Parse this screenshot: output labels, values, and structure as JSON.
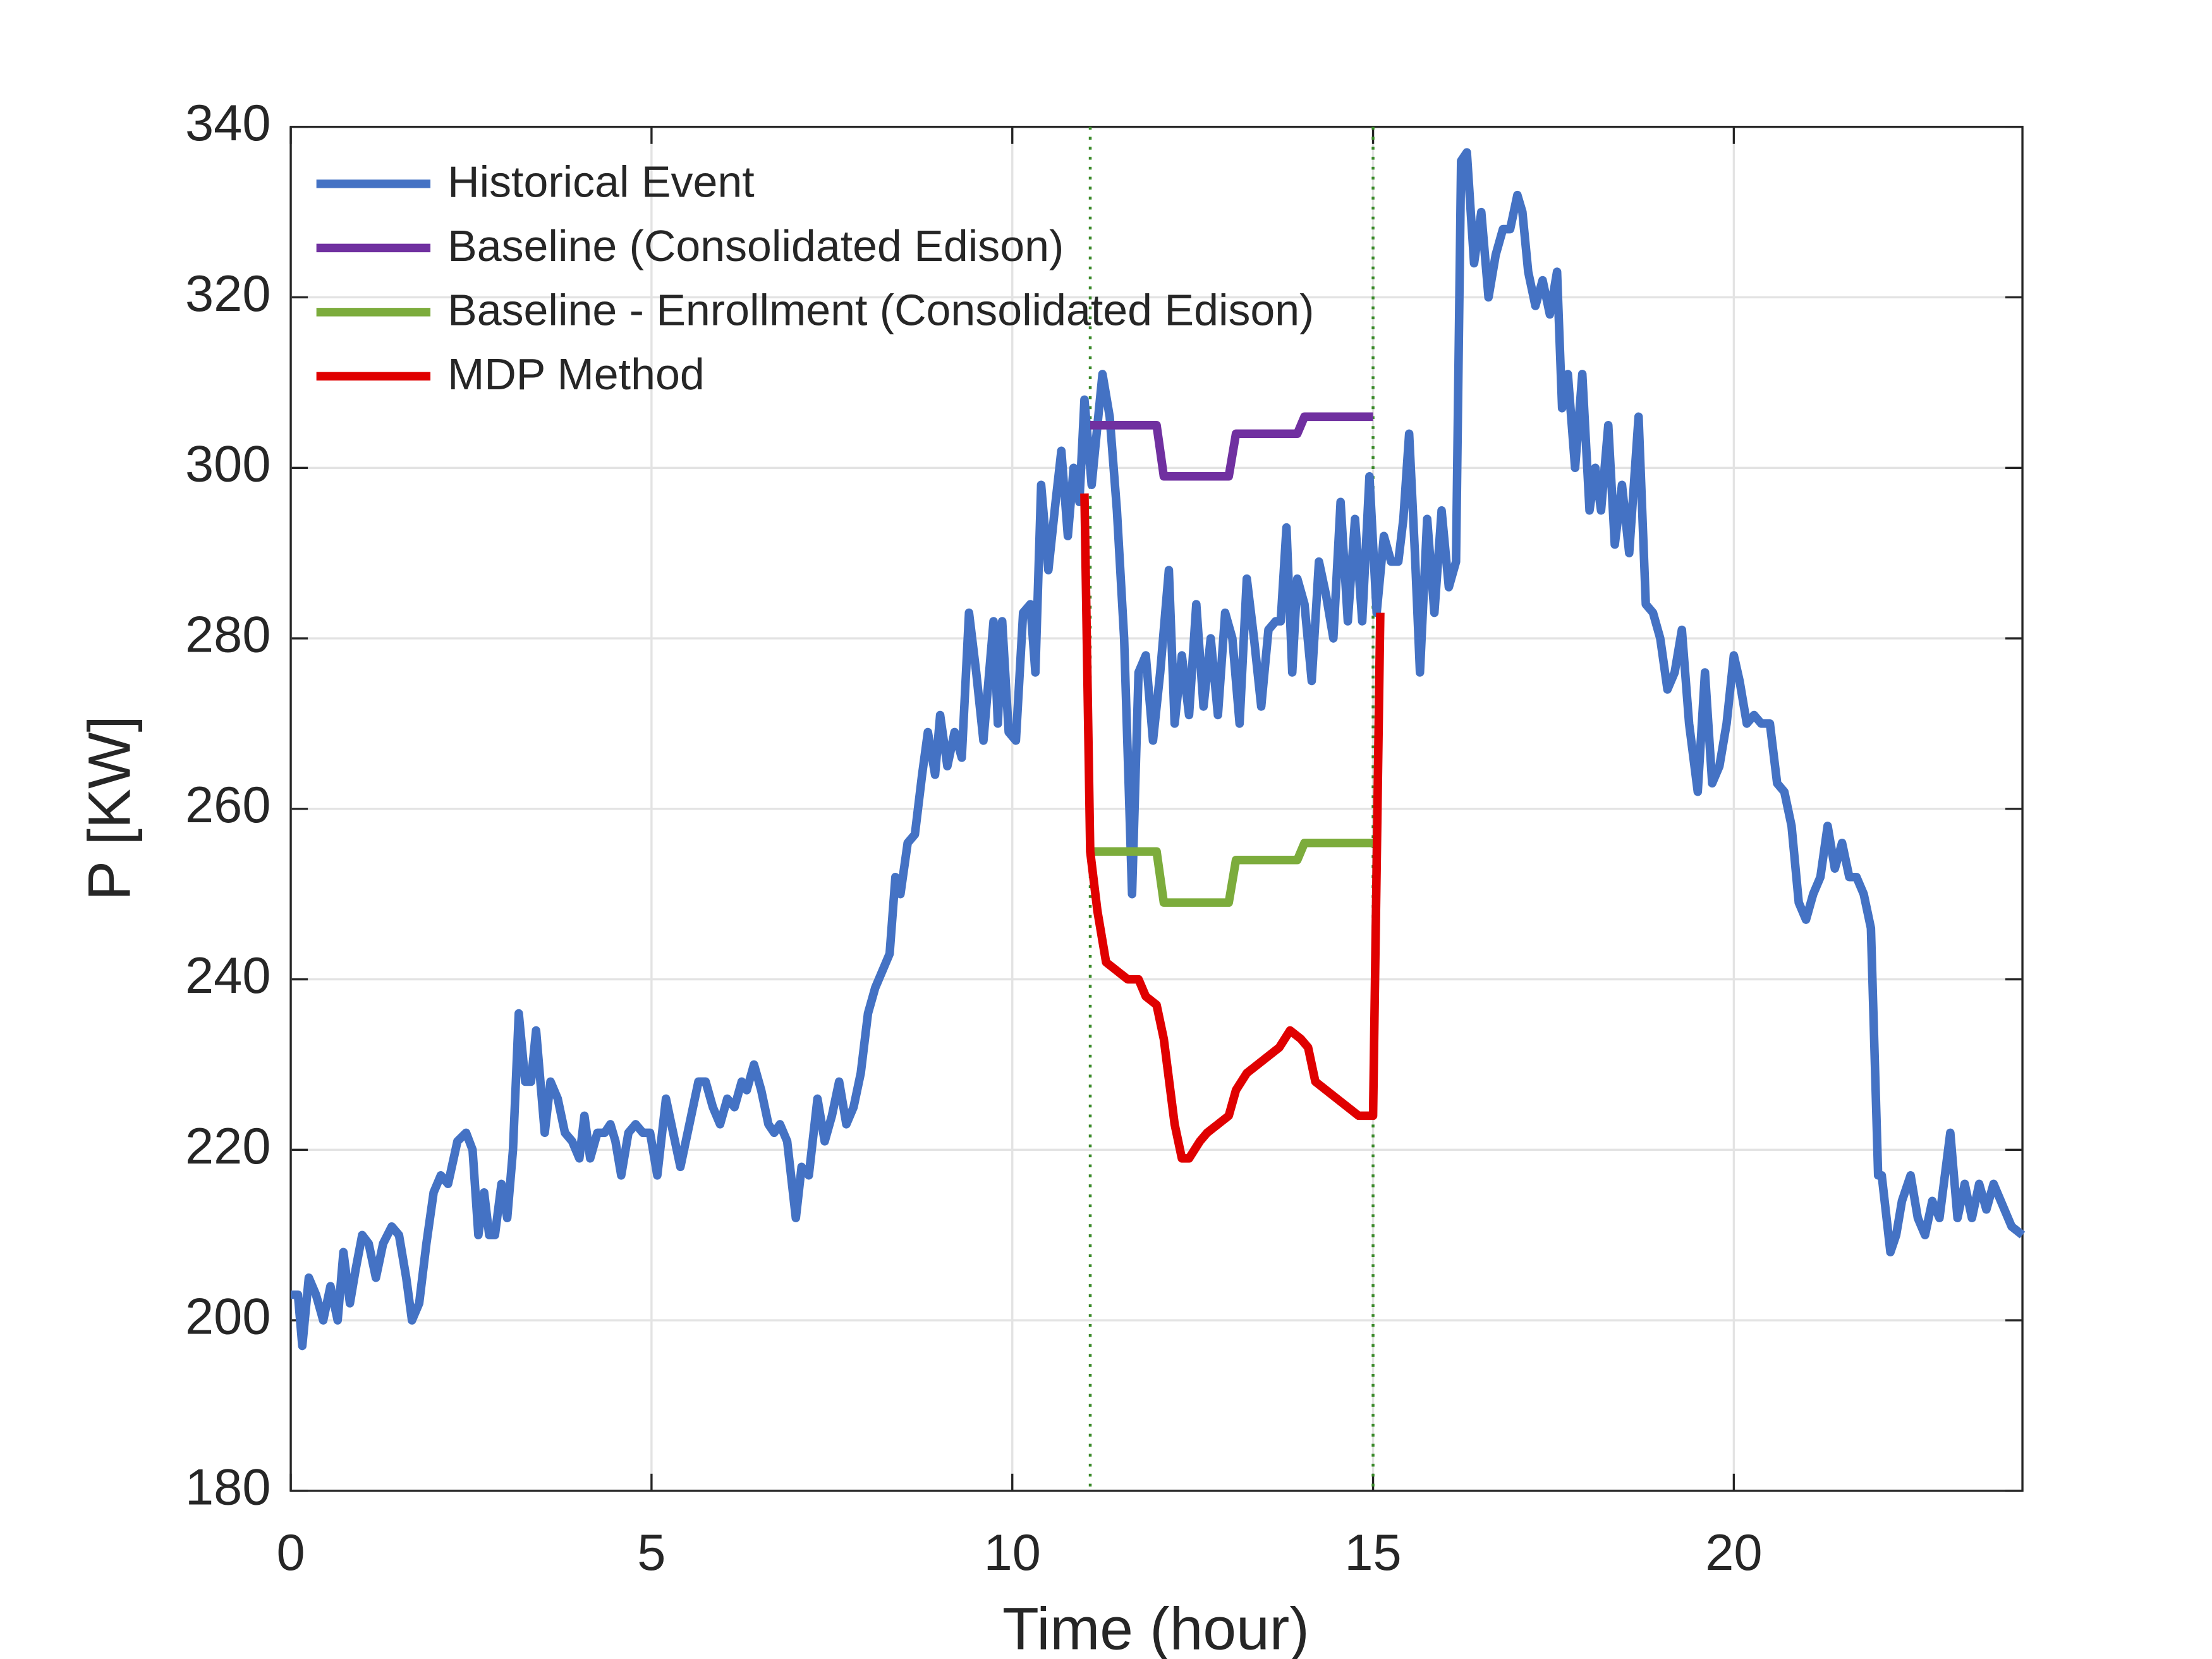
{
  "chart_data": {
    "type": "line",
    "xlabel": "Time (hour)",
    "ylabel": "P [KW]",
    "xlim": [
      0,
      24
    ],
    "ylim": [
      180,
      340
    ],
    "xticks": [
      0,
      5,
      10,
      15,
      20
    ],
    "yticks": [
      180,
      200,
      220,
      240,
      260,
      280,
      300,
      320,
      340
    ],
    "grid": true,
    "legend": "upper left",
    "vlines": [
      11.08,
      15
    ],
    "vline_color": "#3a8a2a",
    "series": [
      {
        "name": "Historical Event",
        "color": "#4472c4",
        "x": [
          0,
          0.1,
          0.16,
          0.25,
          0.35,
          0.45,
          0.55,
          0.65,
          0.73,
          0.82,
          0.9,
          0.99,
          1.08,
          1.18,
          1.28,
          1.4,
          1.5,
          1.6,
          1.68,
          1.78,
          1.88,
          1.98,
          2.08,
          2.18,
          2.31,
          2.43,
          2.52,
          2.6,
          2.68,
          2.75,
          2.83,
          2.92,
          3.0,
          3.08,
          3.16,
          3.25,
          3.33,
          3.4,
          3.52,
          3.6,
          3.7,
          3.8,
          3.9,
          4.0,
          4.07,
          4.15,
          4.25,
          4.35,
          4.43,
          4.5,
          4.58,
          4.68,
          4.78,
          4.88,
          4.98,
          5.08,
          5.2,
          5.3,
          5.4,
          5.5,
          5.65,
          5.75,
          5.85,
          5.95,
          6.05,
          6.15,
          6.25,
          6.32,
          6.42,
          6.52,
          6.62,
          6.7,
          6.78,
          6.88,
          7.0,
          7.08,
          7.18,
          7.3,
          7.4,
          7.5,
          7.6,
          7.7,
          7.8,
          7.9,
          8.0,
          8.1,
          8.2,
          8.3,
          8.38,
          8.45,
          8.55,
          8.65,
          8.75,
          8.83,
          8.93,
          9.0,
          9.1,
          9.2,
          9.3,
          9.4,
          9.5,
          9.6,
          9.74,
          9.8,
          9.86,
          9.95,
          10.05,
          10.15,
          10.25,
          10.32,
          10.4,
          10.5,
          10.6,
          10.68,
          10.77,
          10.85,
          10.93,
          11.0,
          11.1,
          11.18,
          11.25,
          11.35,
          11.45,
          11.55,
          11.66,
          11.75,
          11.85,
          11.95,
          12.05,
          12.17,
          12.25,
          12.35,
          12.45,
          12.55,
          12.65,
          12.75,
          12.85,
          12.95,
          13.05,
          13.15,
          13.25,
          13.35,
          13.45,
          13.55,
          13.65,
          13.72,
          13.8,
          13.88,
          13.95,
          14.05,
          14.15,
          14.25,
          14.35,
          14.45,
          14.55,
          14.65,
          14.75,
          14.85,
          14.95,
          15.05,
          15.15,
          15.25,
          15.35,
          15.42,
          15.5,
          15.58,
          15.65,
          15.75,
          15.85,
          15.95,
          16.05,
          16.15,
          16.22,
          16.3,
          16.4,
          16.5,
          16.6,
          16.7,
          16.8,
          16.9,
          17.0,
          17.07,
          17.15,
          17.25,
          17.35,
          17.45,
          17.55,
          17.62,
          17.7,
          17.8,
          17.9,
          18.0,
          18.08,
          18.16,
          18.26,
          18.35,
          18.45,
          18.55,
          18.68,
          18.78,
          18.88,
          18.98,
          19.08,
          19.18,
          19.28,
          19.38,
          19.5,
          19.6,
          19.7,
          19.8,
          19.9,
          20.0,
          20.08,
          20.18,
          20.28,
          20.38,
          20.5,
          20.6,
          20.7,
          20.8,
          20.9,
          21.0,
          21.1,
          21.2,
          21.3,
          21.4,
          21.5,
          21.6,
          21.7,
          21.8,
          21.9,
          22.0,
          22.05,
          22.17,
          22.25,
          22.33,
          22.45,
          22.55,
          22.65,
          22.75,
          22.85,
          23.0,
          23.1,
          23.2,
          23.3,
          23.4,
          23.5,
          23.6,
          23.7,
          23.85,
          24
        ],
        "values": [
          203,
          203,
          197,
          205,
          203,
          200,
          204,
          200,
          208,
          202,
          206,
          210,
          209,
          205,
          209,
          211,
          210,
          205,
          200,
          202,
          209,
          215,
          217,
          216,
          221,
          222,
          220,
          210,
          215,
          210,
          210,
          216,
          212,
          220,
          236,
          228,
          228,
          234,
          222,
          228,
          226,
          222,
          221,
          219,
          224,
          219,
          222,
          222,
          223,
          221,
          217,
          222,
          223,
          222,
          222,
          217,
          226,
          222,
          218,
          222,
          228,
          228,
          225,
          223,
          226,
          225,
          228,
          227,
          230,
          227,
          223,
          222,
          223,
          221,
          212,
          218,
          217,
          226,
          221,
          224,
          228,
          223,
          225,
          229,
          236,
          239,
          241,
          243,
          252,
          250,
          256,
          257,
          264,
          269,
          264,
          271,
          265,
          269,
          266,
          283,
          276,
          268,
          282,
          270,
          282,
          269,
          268,
          283,
          284,
          276,
          298,
          288,
          296,
          302,
          292,
          300,
          296,
          308,
          298,
          305,
          311,
          306,
          295,
          280,
          250,
          276,
          278,
          268,
          276,
          288,
          270,
          278,
          271,
          284,
          272,
          280,
          271,
          283,
          280,
          270,
          287,
          280,
          272,
          281,
          282,
          282,
          293,
          276,
          287,
          284,
          275,
          289,
          285,
          280,
          296,
          282,
          294,
          282,
          299,
          283,
          292,
          289,
          289,
          294,
          304,
          290,
          276,
          294,
          283,
          295,
          286,
          289,
          336,
          337,
          324,
          330,
          320,
          325,
          328,
          328,
          332,
          330,
          323,
          319,
          322,
          318,
          323,
          307,
          311,
          300,
          311,
          295,
          300,
          295,
          305,
          291,
          298,
          290,
          306,
          284,
          283,
          280,
          274,
          276,
          281,
          270,
          262,
          276,
          263,
          265,
          270,
          278,
          275,
          270,
          271,
          270,
          270,
          263,
          262,
          258,
          249,
          247,
          250,
          252,
          258,
          253,
          256,
          252,
          252,
          250,
          246,
          217,
          217,
          208,
          210,
          214,
          217,
          212,
          210,
          214,
          212,
          222,
          212,
          216,
          212,
          216,
          213,
          216,
          214,
          211,
          210
        ]
      },
      {
        "name": "Baseline (Consolidated Edison)",
        "color": "#7030a0",
        "x": [
          11.08,
          12.0,
          12.1,
          13.0,
          13.1,
          13.95,
          14.05,
          15.0
        ],
        "values": [
          305,
          305,
          299,
          299,
          304,
          304,
          306,
          306
        ]
      },
      {
        "name": "Baseline - Enrollment (Consolidated Edison)",
        "color": "#7cac3c",
        "x": [
          11.08,
          12.0,
          12.1,
          13.0,
          13.1,
          13.95,
          14.05,
          15.0
        ],
        "values": [
          255,
          255,
          249,
          249,
          254,
          254,
          256,
          256
        ]
      },
      {
        "name": "MDP Method",
        "color": "#e00000",
        "x": [
          11.0,
          11.08,
          11.18,
          11.3,
          11.45,
          11.6,
          11.75,
          11.85,
          12.0,
          12.1,
          12.25,
          12.35,
          12.45,
          12.6,
          12.7,
          12.85,
          13.0,
          13.1,
          13.25,
          13.4,
          13.55,
          13.7,
          13.85,
          14.0,
          14.1,
          14.2,
          14.35,
          14.5,
          14.65,
          14.8,
          15.0,
          15.1
        ],
        "values": [
          297,
          255,
          248,
          242,
          241,
          240,
          240,
          238,
          237,
          233,
          223,
          219,
          219,
          221,
          222,
          223,
          224,
          227,
          229,
          230,
          231,
          232,
          234,
          233,
          232,
          228,
          227,
          226,
          225,
          224,
          224,
          283
        ]
      }
    ]
  }
}
